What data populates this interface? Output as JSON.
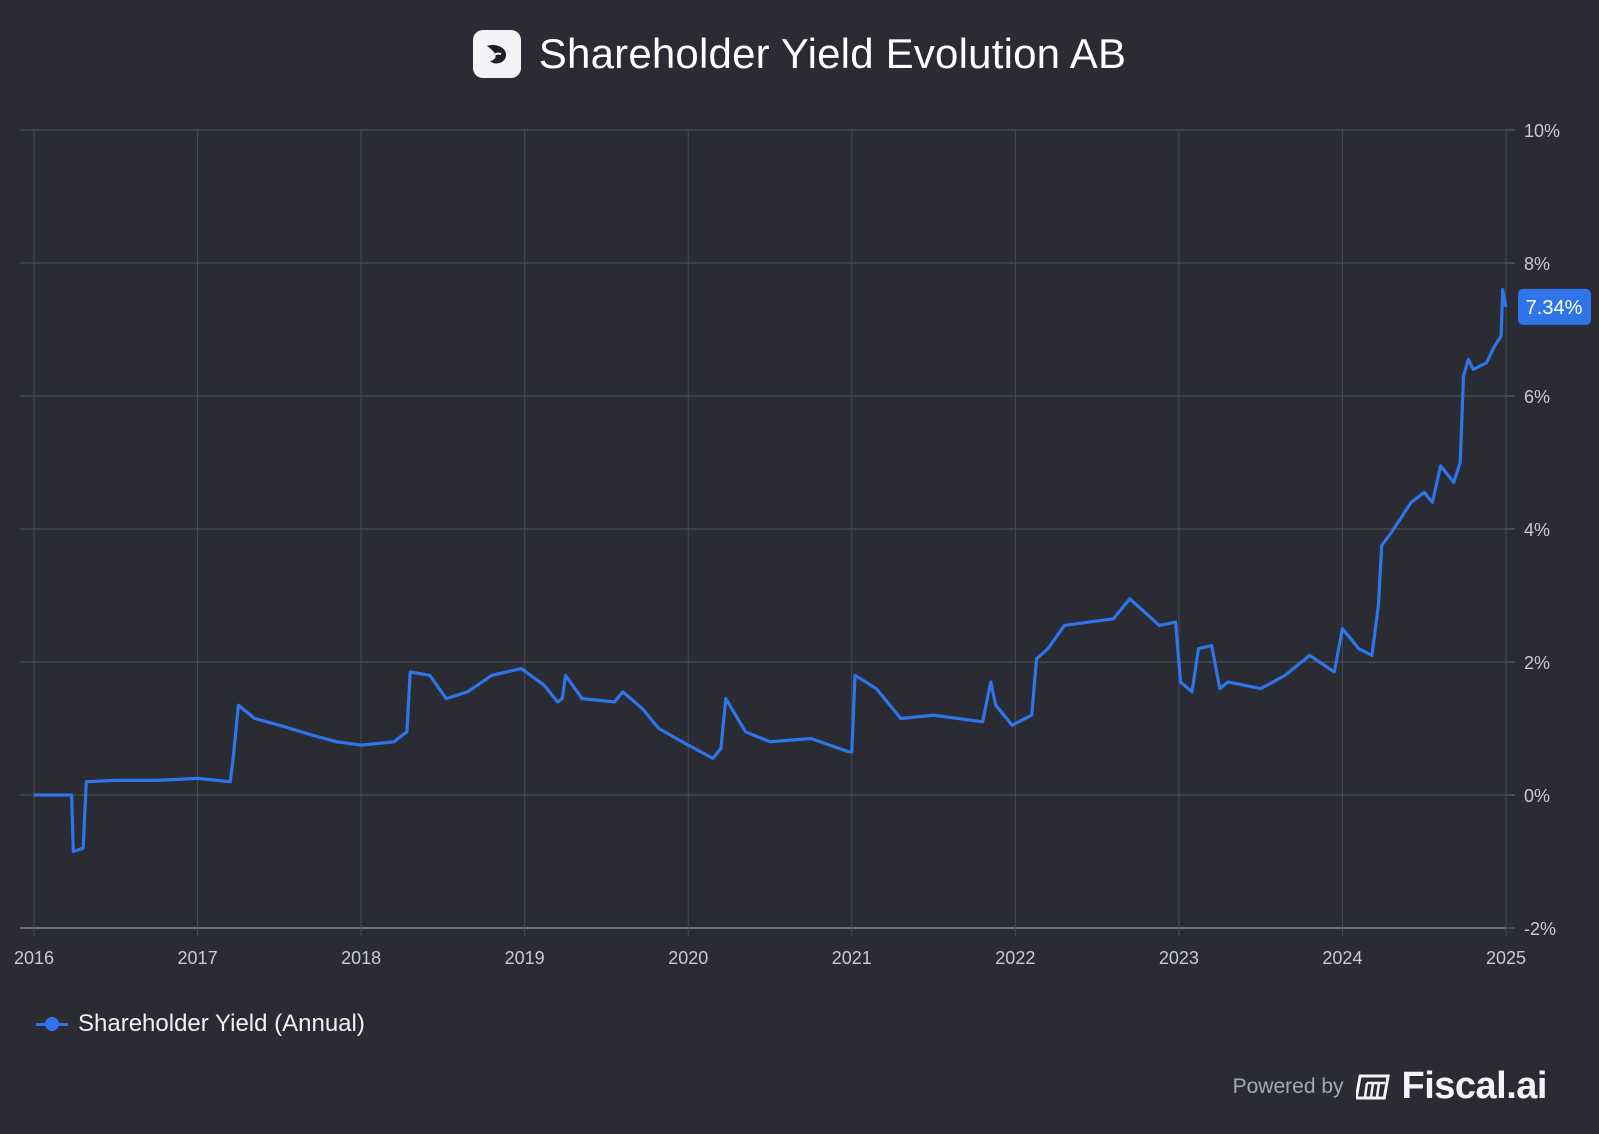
{
  "header": {
    "title": "Shareholder Yield Evolution AB",
    "logo_icon": "evolution-logo-icon"
  },
  "legend": {
    "label": "Shareholder Yield (Annual)"
  },
  "footer": {
    "powered_by": "Powered by",
    "brand": "Fiscal.ai",
    "brand_icon": "fiscal-logo-icon"
  },
  "colors": {
    "background": "#2a2b33",
    "line": "#2f74e8",
    "grid": "#4a4c55",
    "badge": "#2f74e8"
  },
  "chart_data": {
    "type": "line",
    "title": "Shareholder Yield Evolution AB",
    "xlabel": "",
    "ylabel": "",
    "x_ticks": [
      "2016",
      "2017",
      "2018",
      "2019",
      "2020",
      "2021",
      "2022",
      "2023",
      "2024",
      "2025"
    ],
    "y_ticks": [
      "10%",
      "8%",
      "6%",
      "4%",
      "2%",
      "0%",
      "-2%"
    ],
    "y_tick_values": [
      10,
      8,
      6,
      4,
      2,
      0,
      -2
    ],
    "ylim": [
      -2,
      10
    ],
    "xlim": [
      2016.0,
      2025.0
    ],
    "grid": true,
    "legend_position": "bottom-left",
    "last_value_label": "7.34%",
    "series": [
      {
        "name": "Shareholder Yield (Annual)",
        "color": "#2f74e8",
        "x": [
          2016.0,
          2016.23,
          2016.24,
          2016.3,
          2016.32,
          2016.5,
          2016.75,
          2017.0,
          2017.2,
          2017.22,
          2017.25,
          2017.35,
          2017.5,
          2017.7,
          2017.85,
          2018.0,
          2018.2,
          2018.28,
          2018.3,
          2018.42,
          2018.52,
          2018.65,
          2018.8,
          2018.98,
          2019.12,
          2019.2,
          2019.23,
          2019.25,
          2019.35,
          2019.55,
          2019.6,
          2019.72,
          2019.82,
          2020.0,
          2020.15,
          2020.2,
          2020.23,
          2020.35,
          2020.5,
          2020.75,
          2020.98,
          2021.0,
          2021.02,
          2021.15,
          2021.3,
          2021.5,
          2021.8,
          2021.85,
          2021.88,
          2021.98,
          2022.1,
          2022.13,
          2022.2,
          2022.3,
          2022.45,
          2022.6,
          2022.7,
          2022.88,
          2022.98,
          2023.01,
          2023.08,
          2023.12,
          2023.2,
          2023.25,
          2023.3,
          2023.5,
          2023.65,
          2023.8,
          2023.95,
          2024.0,
          2024.1,
          2024.18,
          2024.22,
          2024.24,
          2024.3,
          2024.42,
          2024.5,
          2024.55,
          2024.6,
          2024.68,
          2024.72,
          2024.74,
          2024.77,
          2024.8,
          2024.88,
          2024.93,
          2024.97,
          2024.98,
          2025.0
        ],
        "values": [
          0.0,
          0.0,
          -0.85,
          -0.8,
          0.2,
          0.22,
          0.22,
          0.25,
          0.2,
          0.6,
          1.35,
          1.15,
          1.05,
          0.9,
          0.8,
          0.75,
          0.8,
          0.95,
          1.85,
          1.8,
          1.45,
          1.55,
          1.8,
          1.9,
          1.65,
          1.4,
          1.45,
          1.8,
          1.45,
          1.4,
          1.55,
          1.3,
          1.0,
          0.75,
          0.55,
          0.7,
          1.45,
          0.95,
          0.8,
          0.85,
          0.65,
          0.65,
          1.8,
          1.6,
          1.15,
          1.2,
          1.1,
          1.7,
          1.35,
          1.05,
          1.2,
          2.05,
          2.2,
          2.55,
          2.6,
          2.65,
          2.95,
          2.55,
          2.6,
          1.7,
          1.55,
          2.2,
          2.25,
          1.6,
          1.7,
          1.6,
          1.8,
          2.1,
          1.85,
          2.5,
          2.2,
          2.1,
          2.85,
          3.75,
          3.95,
          4.4,
          4.55,
          4.4,
          4.95,
          4.7,
          5.0,
          6.3,
          6.55,
          6.4,
          6.5,
          6.75,
          6.9,
          7.6,
          7.34
        ]
      }
    ]
  }
}
